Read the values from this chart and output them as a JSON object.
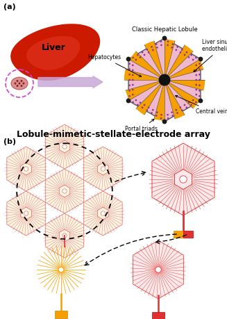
{
  "bg_color": "#ffffff",
  "title_text": "Lobule-mimetic-stellate-electrode array",
  "label_a": "(a)",
  "label_b": "(b)",
  "liver_color": "#cc1a00",
  "liver_light": "#e84030",
  "arrow_color": "#c8a8d8",
  "lobule_bg": "#f0b8cc",
  "lobule_orange": "#f5a000",
  "lobule_border": "#555555",
  "lobule_dot_color": "#883399",
  "lobule_center_color": "#111111",
  "electrode_color_1st": "#f5a000",
  "electrode_color_2nd": "#e03030",
  "dashed_color": "#111111",
  "font_size_title": 9,
  "font_size_label": 6,
  "font_size_panel": 8,
  "font_size_annot": 5.5
}
